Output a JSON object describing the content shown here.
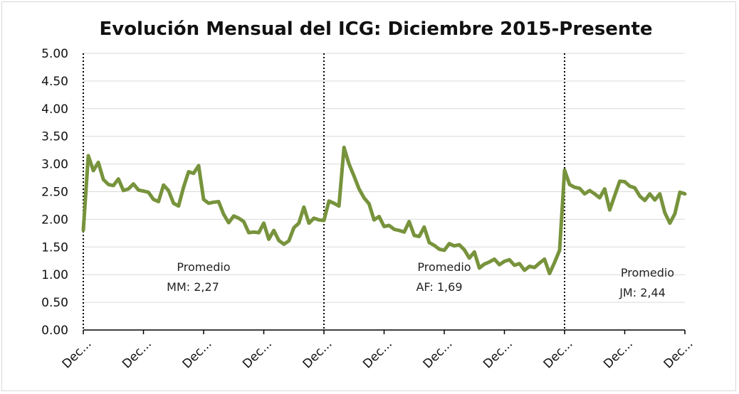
{
  "chart_data": {
    "type": "line",
    "title": "Evolución Mensual del ICG: Diciembre 2015-Presente",
    "xlabel": "",
    "ylabel": "",
    "ylim": [
      0,
      5
    ],
    "y_ticks": [
      "0.00",
      "0.50",
      "1.00",
      "1.50",
      "2.00",
      "2.50",
      "3.00",
      "3.50",
      "4.00",
      "4.50",
      "5.00"
    ],
    "x_tick_labels": [
      "Dec...",
      "Dec...",
      "Dec...",
      "Dec...",
      "Dec...",
      "Dec...",
      "Dec...",
      "Dec...",
      "Dec...",
      "Dec...",
      "Dec..."
    ],
    "x_tick_indices": [
      0,
      12,
      24,
      36,
      48,
      60,
      72,
      84,
      96,
      108,
      120
    ],
    "series": [
      {
        "name": "ICG",
        "color": "#77933c",
        "values": [
          1.8,
          3.15,
          2.88,
          3.03,
          2.72,
          2.63,
          2.61,
          2.73,
          2.52,
          2.55,
          2.64,
          2.53,
          2.51,
          2.49,
          2.36,
          2.32,
          2.62,
          2.52,
          2.29,
          2.24,
          2.58,
          2.86,
          2.83,
          2.97,
          2.36,
          2.29,
          2.31,
          2.32,
          2.09,
          1.94,
          2.06,
          2.02,
          1.96,
          1.76,
          1.77,
          1.76,
          1.93,
          1.64,
          1.8,
          1.62,
          1.55,
          1.61,
          1.85,
          1.93,
          2.22,
          1.93,
          2.02,
          1.99,
          1.98,
          2.33,
          2.29,
          2.24,
          3.3,
          3.0,
          2.78,
          2.55,
          2.39,
          2.28,
          1.99,
          2.05,
          1.87,
          1.89,
          1.82,
          1.8,
          1.77,
          1.96,
          1.71,
          1.69,
          1.86,
          1.58,
          1.53,
          1.46,
          1.44,
          1.56,
          1.52,
          1.54,
          1.45,
          1.3,
          1.41,
          1.12,
          1.19,
          1.23,
          1.28,
          1.18,
          1.24,
          1.27,
          1.17,
          1.2,
          1.08,
          1.15,
          1.13,
          1.21,
          1.28,
          1.02,
          1.22,
          1.44,
          2.89,
          2.63,
          2.58,
          2.56,
          2.46,
          2.52,
          2.46,
          2.39,
          2.55,
          2.17,
          2.43,
          2.69,
          2.68,
          2.6,
          2.57,
          2.42,
          2.34,
          2.46,
          2.35,
          2.46,
          2.12,
          1.93,
          2.1,
          2.49,
          2.46
        ]
      }
    ],
    "period_separators": [
      48,
      96
    ],
    "annotations": [
      {
        "line1": "Promedio",
        "line2": "MM: 2,27"
      },
      {
        "line1": "Promedio",
        "line2": "AF: 1,69"
      },
      {
        "line1": "Promedio",
        "line2": "JM: 2,44"
      }
    ]
  }
}
